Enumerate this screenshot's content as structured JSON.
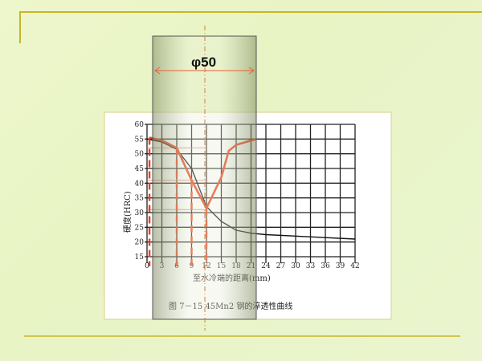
{
  "slide": {
    "accent_line_color": "#c8b42a",
    "overlay_label": "φ50"
  },
  "chart_data": {
    "type": "line",
    "title": "图 7－15   45Mn2 钢的淬透性曲线",
    "xlabel": "至水冷端的距离(mm)",
    "ylabel": "硬度(HRC)",
    "xlim": [
      0,
      42
    ],
    "ylim": [
      15,
      60
    ],
    "xticks": [
      0,
      3,
      6,
      9,
      12,
      15,
      18,
      21,
      24,
      27,
      30,
      33,
      36,
      39,
      42
    ],
    "yticks": [
      15,
      20,
      25,
      30,
      35,
      40,
      45,
      50,
      55,
      60
    ],
    "grid": true,
    "series": [
      {
        "color": "#111111",
        "x": [
          0,
          3,
          6,
          9,
          12,
          15,
          18,
          21,
          24,
          30,
          36,
          42
        ],
        "y": [
          55,
          54,
          51.5,
          45,
          32,
          27,
          24,
          23,
          22.5,
          22,
          21.5,
          21
        ]
      },
      {
        "color": "#e8401c",
        "x": [
          0.5,
          3,
          6,
          9,
          12,
          15,
          16.5,
          18,
          21,
          22
        ],
        "y": [
          55.5,
          54.5,
          52,
          41,
          31.5,
          42,
          51,
          53,
          54.5,
          55
        ]
      }
    ],
    "reference_x": [
      0.5,
      6,
      9,
      12
    ],
    "reference_y": [
      52,
      41,
      31
    ]
  }
}
